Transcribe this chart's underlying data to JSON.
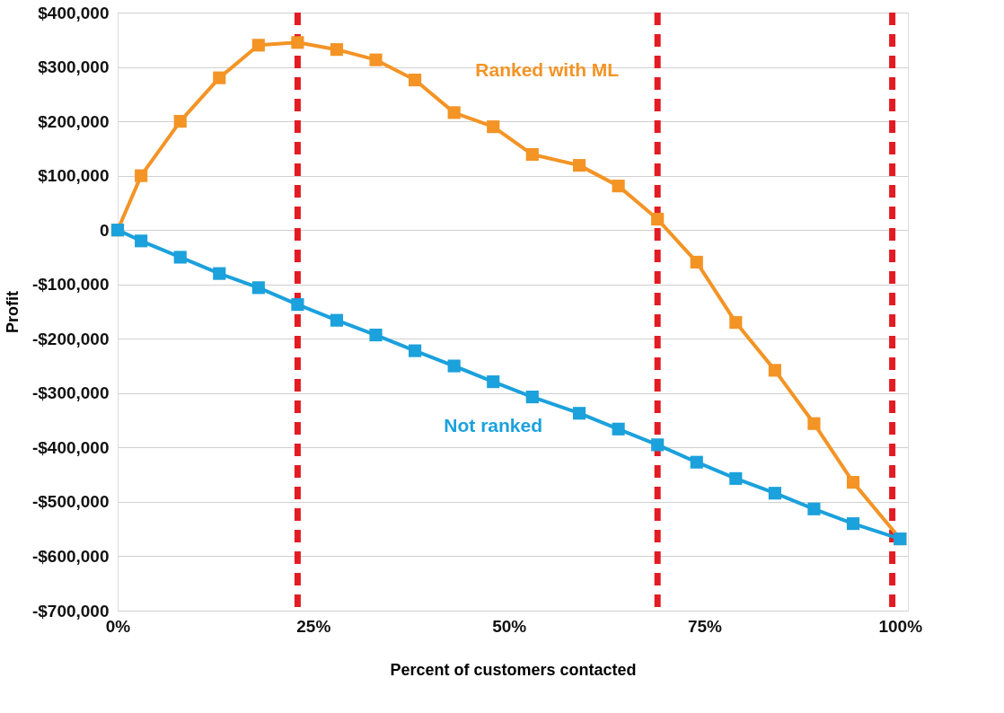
{
  "chart_data": {
    "type": "line",
    "xlabel": "Percent of customers contacted",
    "ylabel": "Profit",
    "x": [
      0,
      3,
      8,
      13,
      18,
      23,
      28,
      33,
      38,
      43,
      48,
      53,
      59,
      64,
      69,
      74,
      79,
      84,
      89,
      94,
      100
    ],
    "series": [
      {
        "name": "Ranked with ML",
        "color": "#f39425",
        "values": [
          0,
          100000,
          200000,
          280000,
          340000,
          345000,
          332000,
          313000,
          276000,
          216000,
          190000,
          139000,
          119000,
          81000,
          20000,
          -59000,
          -170000,
          -258000,
          -356000,
          -464000,
          -568000
        ]
      },
      {
        "name": "Not ranked",
        "color": "#1ba1dc",
        "values": [
          0,
          -20000,
          -50000,
          -80000,
          -106000,
          -137000,
          -166000,
          -193000,
          -222000,
          -250000,
          -279000,
          -307000,
          -337000,
          -366000,
          -395000,
          -427000,
          -457000,
          -484000,
          -513000,
          -540000,
          -568000
        ]
      }
    ],
    "xlim": [
      0,
      101
    ],
    "xticks": [
      {
        "value": 0,
        "label": "0%"
      },
      {
        "value": 25,
        "label": "25%"
      },
      {
        "value": 50,
        "label": "50%"
      },
      {
        "value": 75,
        "label": "75%"
      },
      {
        "value": 100,
        "label": "100%"
      }
    ],
    "ylim": [
      -700000,
      400000
    ],
    "yticks": [
      {
        "value": -700000,
        "label": "-$700,000"
      },
      {
        "value": -600000,
        "label": "-$600,000"
      },
      {
        "value": -500000,
        "label": "-$500,000"
      },
      {
        "value": -400000,
        "label": "-$400,000"
      },
      {
        "value": -300000,
        "label": "-$300,000"
      },
      {
        "value": -200000,
        "label": "-$200,000"
      },
      {
        "value": -100000,
        "label": "-$100,000"
      },
      {
        "value": 0,
        "label": "0"
      },
      {
        "value": 100000,
        "label": "$100,000"
      },
      {
        "value": 200000,
        "label": "$200,000"
      },
      {
        "value": 300000,
        "label": "$300,000"
      },
      {
        "value": 400000,
        "label": "$400,000"
      }
    ],
    "ref_lines": [
      {
        "axis": "x",
        "value": 23,
        "color": "#e31b23",
        "line_style": "dashed"
      },
      {
        "axis": "x",
        "value": 69,
        "color": "#e31b23",
        "line_style": "dashed"
      },
      {
        "axis": "x",
        "value": 99,
        "color": "#e31b23",
        "line_style": "dashed"
      }
    ],
    "grid": "y",
    "legend": false,
    "marker": "square",
    "line_style": "solid"
  }
}
